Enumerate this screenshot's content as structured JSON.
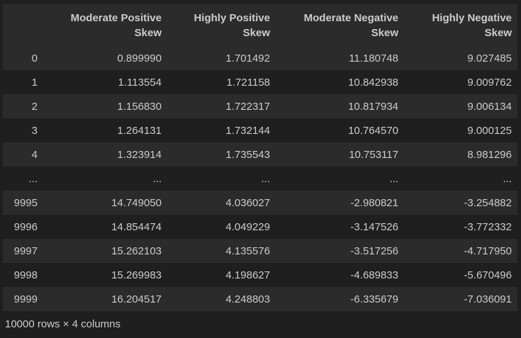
{
  "table": {
    "columns": [
      "",
      "Moderate Positive Skew",
      "Highly Positive Skew",
      "Moderate Negative Skew",
      "Highly Negative Skew"
    ],
    "rows": [
      [
        "0",
        "0.899990",
        "1.701492",
        "11.180748",
        "9.027485"
      ],
      [
        "1",
        "1.113554",
        "1.721158",
        "10.842938",
        "9.009762"
      ],
      [
        "2",
        "1.156830",
        "1.722317",
        "10.817934",
        "9.006134"
      ],
      [
        "3",
        "1.264131",
        "1.732144",
        "10.764570",
        "9.000125"
      ],
      [
        "4",
        "1.323914",
        "1.735543",
        "10.753117",
        "8.981296"
      ],
      [
        "...",
        "...",
        "...",
        "...",
        "..."
      ],
      [
        "9995",
        "14.749050",
        "4.036027",
        "-2.980821",
        "-3.254882"
      ],
      [
        "9996",
        "14.854474",
        "4.049229",
        "-3.147526",
        "-3.772332"
      ],
      [
        "9997",
        "15.262103",
        "4.135576",
        "-3.517256",
        "-4.717950"
      ],
      [
        "9998",
        "15.269983",
        "4.198627",
        "-4.689833",
        "-5.670496"
      ],
      [
        "9999",
        "16.204517",
        "4.248803",
        "-6.335679",
        "-7.036091"
      ]
    ]
  },
  "footer": {
    "shape_text": "10000 rows × 4 columns"
  },
  "colors": {
    "background": "#1f1f1f",
    "stripe": "#2b2b2b",
    "text": "#cccccc"
  }
}
